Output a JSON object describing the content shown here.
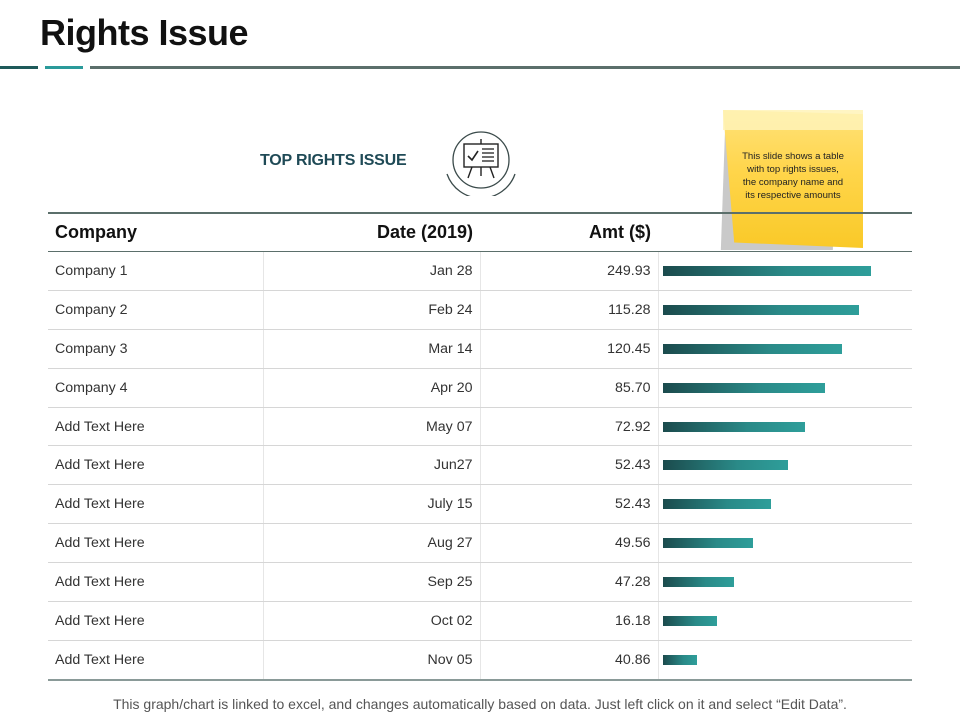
{
  "slide": {
    "title": "Rights Issue",
    "section_title": "TOP RIGHTS ISSUE",
    "sticky_note": "This slide shows a table with top rights issues, the company name and its respective amounts",
    "footer": "This graph/chart is linked to excel, and changes automatically based on data. Just left click on it and select “Edit Data”."
  },
  "table": {
    "headers": {
      "company": "Company",
      "date": "Date (2019)",
      "amt": "Amt ($)"
    },
    "rows": [
      {
        "company": "Company 1",
        "date": "Jan 28",
        "amt": "249.93"
      },
      {
        "company": "Company 2",
        "date": "Feb 24",
        "amt": "115.28"
      },
      {
        "company": "Company 3",
        "date": "Mar 14",
        "amt": "120.45"
      },
      {
        "company": "Company 4",
        "date": "Apr 20",
        "amt": "85.70"
      },
      {
        "company": "Add Text Here",
        "date": "May 07",
        "amt": "72.92"
      },
      {
        "company": "Add Text Here",
        "date": "Jun27",
        "amt": "52.43"
      },
      {
        "company": "Add Text Here",
        "date": "July 15",
        "amt": "52.43"
      },
      {
        "company": "Add Text Here",
        "date": "Aug 27",
        "amt": "49.56"
      },
      {
        "company": "Add Text Here",
        "date": "Sep 25",
        "amt": "47.28"
      },
      {
        "company": "Add Text Here",
        "date": "Oct 02",
        "amt": "16.18"
      },
      {
        "company": "Add Text Here",
        "date": "Nov 05",
        "amt": "40.86"
      }
    ]
  },
  "bars": {
    "fractions": [
      0.85,
      0.8,
      0.73,
      0.66,
      0.58,
      0.51,
      0.44,
      0.37,
      0.29,
      0.22,
      0.14
    ]
  },
  "colors": {
    "accent_dark": "#1e5a5a",
    "accent_teal": "#2a9a9a",
    "rule_gray": "#5b6f6b",
    "sticky_yellow": "#ffd54a"
  },
  "icons": {
    "section_icon": "presentation-board-checklist-icon"
  }
}
